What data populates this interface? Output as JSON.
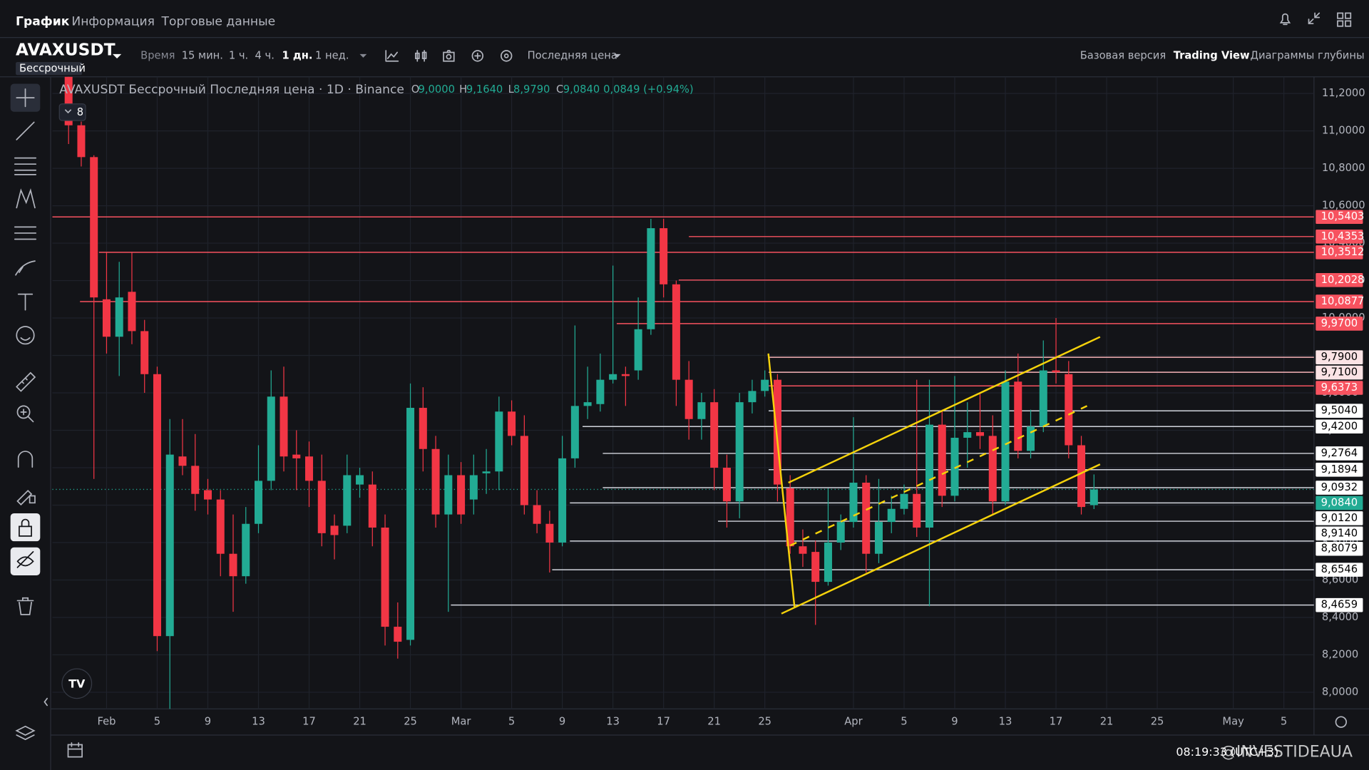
{
  "nav": {
    "tabs": [
      "График",
      "Информация",
      "Торговые данные"
    ]
  },
  "toolbar": {
    "symbol": "AVAXUSDT",
    "contract": "Бессрочный",
    "time_label": "Время",
    "intervals": [
      "15 мин.",
      "1 ч.",
      "4 ч.",
      "1 дн.",
      "1 нед."
    ],
    "price_source": "Последняя цена",
    "views": [
      "Базовая версия",
      "Trading View",
      "Диаграммы глубины"
    ]
  },
  "legend": {
    "title": "AVAXUSDT Бессрочный Последняя цена · 1D · Binance",
    "o_label": "O",
    "open": "9,0000",
    "h_label": "H",
    "high": "9,1640",
    "l_label": "L",
    "low": "8,9790",
    "c_label": "C",
    "close": "9,0840",
    "change": "0,0849 (+0.94%)",
    "indicators": "8"
  },
  "footer": {
    "time": "08:19:33 (UTC+3)",
    "watermark": "@INVESTIDEAUA"
  },
  "chart_data": {
    "type": "candlestick",
    "up_color": "#22ab94",
    "down_color": "#f23645",
    "grid": true,
    "x": [
      -3,
      -2,
      -1,
      0,
      1,
      2,
      3,
      4,
      5,
      6,
      7,
      8,
      9,
      10,
      11,
      12,
      13,
      14,
      15,
      16,
      17,
      18,
      19,
      20,
      21,
      22,
      23,
      24,
      25,
      26,
      27,
      28,
      29,
      30,
      31,
      32,
      33,
      34,
      35,
      36,
      37,
      38,
      39,
      40,
      41,
      42,
      43,
      44,
      45,
      46,
      47,
      48,
      49,
      50,
      51,
      52,
      53,
      54,
      55,
      56,
      57,
      58,
      59,
      60,
      61,
      62,
      63,
      64,
      65,
      66,
      67,
      68,
      69,
      70,
      71,
      72,
      73,
      74,
      75,
      76,
      77,
      78
    ],
    "open": [
      11.35,
      11.03,
      10.86,
      10.1,
      9.9,
      10.14,
      9.93,
      9.7,
      8.3,
      9.26,
      9.21,
      9.08,
      9.03,
      8.74,
      8.62,
      8.9,
      9.13,
      9.58,
      9.27,
      9.26,
      9.13,
      8.89,
      8.89,
      9.11,
      9.11,
      8.88,
      8.35,
      8.28,
      9.52,
      9.3,
      8.95,
      9.16,
      9.03,
      9.17,
      9.18,
      9.5,
      9.37,
      9.0,
      8.9,
      8.8,
      9.25,
      9.53,
      9.54,
      9.67,
      9.7,
      9.72,
      9.94,
      10.48,
      10.18,
      9.67,
      9.46,
      9.55,
      9.2,
      9.02,
      9.55,
      9.61,
      9.67,
      9.09,
      8.78,
      8.75,
      8.59,
      8.8,
      8.91,
      9.12,
      8.74,
      8.91,
      8.98,
      9.06,
      8.88,
      9.43,
      9.05,
      9.36,
      9.39,
      9.37,
      9.02,
      9.66,
      9.29,
      9.42,
      9.72,
      9.7,
      9.32,
      9.0
    ],
    "high": [
      11.45,
      11.05,
      10.87,
      10.35,
      10.3,
      10.35,
      9.99,
      9.74,
      9.46,
      9.46,
      9.38,
      9.14,
      9.08,
      8.95,
      8.99,
      9.32,
      9.72,
      9.74,
      9.4,
      9.34,
      9.27,
      8.95,
      9.27,
      9.2,
      9.18,
      8.95,
      8.48,
      9.65,
      9.63,
      9.37,
      9.27,
      9.23,
      9.27,
      9.3,
      9.58,
      9.56,
      9.48,
      9.08,
      8.97,
      9.37,
      9.96,
      9.74,
      9.81,
      10.28,
      9.74,
      10.11,
      10.53,
      10.53,
      10.2,
      9.77,
      9.6,
      9.62,
      9.27,
      9.6,
      9.67,
      9.72,
      9.7,
      9.16,
      8.87,
      8.81,
      9.09,
      8.95,
      9.47,
      9.16,
      9.14,
      9.05,
      9.11,
      9.67,
      9.67,
      9.51,
      9.69,
      9.55,
      9.6,
      9.48,
      9.72,
      9.81,
      9.51,
      9.88,
      10.0,
      9.77,
      9.37,
      9.164
    ],
    "low": [
      10.93,
      10.81,
      9.14,
      9.81,
      9.69,
      9.86,
      9.6,
      8.22,
      7.91,
      9.16,
      8.97,
      8.95,
      8.62,
      8.43,
      8.58,
      8.85,
      9.08,
      9.18,
      9.08,
      8.99,
      8.78,
      8.71,
      8.85,
      9.04,
      8.78,
      8.25,
      8.18,
      8.25,
      9.18,
      8.88,
      8.43,
      8.9,
      8.95,
      9.06,
      9.08,
      9.32,
      8.95,
      8.85,
      8.64,
      8.78,
      9.2,
      9.46,
      9.5,
      9.65,
      9.53,
      9.67,
      9.91,
      10.11,
      9.53,
      9.35,
      9.35,
      9.08,
      8.88,
      8.93,
      9.49,
      9.58,
      9.02,
      8.74,
      8.67,
      8.36,
      8.57,
      8.76,
      8.88,
      8.64,
      8.69,
      8.85,
      8.95,
      8.83,
      8.46,
      8.99,
      9.02,
      9.2,
      9.3,
      8.95,
      9.0,
      9.25,
      9.25,
      9.39,
      9.65,
      9.25,
      8.95,
      8.979
    ],
    "close": [
      11.03,
      10.86,
      10.11,
      9.9,
      10.11,
      9.93,
      9.7,
      8.3,
      9.27,
      9.21,
      9.06,
      9.03,
      8.74,
      8.62,
      8.9,
      9.13,
      9.58,
      9.26,
      9.25,
      9.13,
      8.85,
      8.84,
      9.16,
      9.16,
      8.88,
      8.35,
      8.27,
      9.52,
      9.3,
      8.95,
      9.16,
      8.95,
      9.16,
      9.18,
      9.5,
      9.37,
      9.0,
      8.9,
      8.8,
      9.25,
      9.53,
      9.55,
      9.67,
      9.7,
      9.69,
      9.94,
      10.48,
      10.18,
      9.67,
      9.46,
      9.55,
      9.2,
      9.02,
      9.55,
      9.61,
      9.67,
      9.11,
      8.78,
      8.74,
      8.59,
      8.8,
      8.91,
      9.12,
      8.74,
      8.91,
      8.98,
      9.06,
      8.88,
      9.43,
      9.05,
      9.36,
      9.39,
      9.37,
      9.02,
      9.66,
      9.29,
      9.42,
      9.72,
      9.71,
      9.32,
      8.99,
      9.084
    ],
    "xlim": [
      -4.28,
      95.38
    ],
    "xticks": [
      {
        "value": 0,
        "label": "Feb"
      },
      {
        "value": 4,
        "label": "5"
      },
      {
        "value": 8,
        "label": "9"
      },
      {
        "value": 12,
        "label": "13"
      },
      {
        "value": 16,
        "label": "17"
      },
      {
        "value": 20,
        "label": "21"
      },
      {
        "value": 24,
        "label": "25"
      },
      {
        "value": 28,
        "label": "Mar"
      },
      {
        "value": 32,
        "label": "5"
      },
      {
        "value": 36,
        "label": "9"
      },
      {
        "value": 40,
        "label": "13"
      },
      {
        "value": 44,
        "label": "17"
      },
      {
        "value": 48,
        "label": "21"
      },
      {
        "value": 52,
        "label": "25"
      },
      {
        "value": 59,
        "label": "Apr"
      },
      {
        "value": 63,
        "label": "5"
      },
      {
        "value": 67,
        "label": "9"
      },
      {
        "value": 71,
        "label": "13"
      },
      {
        "value": 75,
        "label": "17"
      },
      {
        "value": 79,
        "label": "21"
      },
      {
        "value": 83,
        "label": "25"
      },
      {
        "value": 89,
        "label": "May"
      },
      {
        "value": 93,
        "label": "5"
      }
    ],
    "ylim": [
      7.911,
      11.289
    ],
    "yticks": [
      {
        "value": 8.0,
        "label": "8,0000"
      },
      {
        "value": 8.2,
        "label": "8,2000"
      },
      {
        "value": 8.4,
        "label": "8,4000"
      },
      {
        "value": 8.6,
        "label": "8,6000"
      },
      {
        "value": 8.8,
        "label": "8,8000"
      },
      {
        "value": 9.0,
        "label": "9,0000"
      },
      {
        "value": 9.2,
        "label": "9,2000"
      },
      {
        "value": 9.4,
        "label": "9,4000"
      },
      {
        "value": 9.6,
        "label": "9,6000"
      },
      {
        "value": 9.8,
        "label": "9,8000"
      },
      {
        "value": 10.0,
        "label": "10,0000"
      },
      {
        "value": 10.2,
        "label": "10,2000"
      },
      {
        "value": 10.4,
        "label": "10,4000"
      },
      {
        "value": 10.6,
        "label": "10,6000"
      },
      {
        "value": 10.8,
        "label": "10,8000"
      },
      {
        "value": 11.0,
        "label": "11,0000"
      },
      {
        "value": 11.2,
        "label": "11,2000"
      }
    ],
    "levels": [
      {
        "value": 10.5403,
        "label": "10,5403",
        "start": -4.28,
        "line_color": "#f7525f",
        "tag_color": "#f7525f",
        "text_color": "#ffffff"
      },
      {
        "value": 10.4353,
        "label": "10,4353",
        "start": 46,
        "line_color": "#f7525f",
        "tag_color": "#f7525f",
        "text_color": "#ffffff"
      },
      {
        "value": 10.3512,
        "label": "10,3512",
        "start": -0.6,
        "line_color": "#f7525f",
        "tag_color": "#f7525f",
        "text_color": "#ffffff"
      },
      {
        "value": 10.2028,
        "label": "10,2028",
        "start": 45.2,
        "line_color": "#f7525f",
        "tag_color": "#f7525f",
        "text_color": "#ffffff"
      },
      {
        "value": 10.0877,
        "label": "10,0877",
        "start": -2.1,
        "line_color": "#f7525f",
        "tag_color": "#f7525f",
        "text_color": "#ffffff"
      },
      {
        "value": 9.97,
        "label": "9,9700",
        "start": 40.3,
        "line_color": "#f7525f",
        "tag_color": "#f7525f",
        "text_color": "#ffffff"
      },
      {
        "value": 9.79,
        "label": "9,7900",
        "start": 52.3,
        "line_color": "#f7b3b9",
        "tag_color": "#fbe3e5",
        "text_color": "#000000"
      },
      {
        "value": 9.71,
        "label": "9,7100",
        "start": 52.3,
        "line_color": "#f7b3b9",
        "tag_color": "#fbe3e5",
        "text_color": "#000000"
      },
      {
        "value": 9.6373,
        "label": "9,6373",
        "start": 52.3,
        "line_color": "#f7525f",
        "tag_color": "#f7525f",
        "text_color": "#ffffff"
      },
      {
        "value": 9.504,
        "label": "9,5040",
        "start": 52.3,
        "line_color": "#d1d4dc",
        "tag_color": "#ffffff",
        "text_color": "#000000"
      },
      {
        "value": 9.42,
        "label": "9,4200",
        "start": 37.6,
        "line_color": "#d1d4dc",
        "tag_color": "#ffffff",
        "text_color": "#000000"
      },
      {
        "value": 9.2764,
        "label": "9,2764",
        "start": 39.2,
        "line_color": "#d1d4dc",
        "tag_color": "#ffffff",
        "text_color": "#000000"
      },
      {
        "value": 9.1894,
        "label": "9,1894",
        "start": 52.3,
        "line_color": "#d1d4dc",
        "tag_color": "#ffffff",
        "text_color": "#000000"
      },
      {
        "value": 9.0932,
        "label": "9,0932",
        "start": 39.2,
        "line_color": "#d1d4dc",
        "tag_color": "#ffffff",
        "text_color": "#000000"
      },
      {
        "value": 9.084,
        "label": "9,0840",
        "start": -4.28,
        "line_color": "#22ab94",
        "tag_color": "#22ab94",
        "text_color": "#ffffff",
        "style": "dotted"
      },
      {
        "value": 9.012,
        "label": "9,0120",
        "start": 36.6,
        "line_color": "#d1d4dc",
        "tag_color": "#ffffff",
        "text_color": "#000000"
      },
      {
        "value": 8.914,
        "label": "8,9140",
        "start": 48.3,
        "line_color": "#d1d4dc",
        "tag_color": "#ffffff",
        "text_color": "#000000"
      },
      {
        "value": 8.8079,
        "label": "8,8079",
        "start": 36.6,
        "line_color": "#d1d4dc",
        "tag_color": "#ffffff",
        "text_color": "#000000"
      },
      {
        "value": 8.6546,
        "label": "8,6546",
        "start": 35.2,
        "line_color": "#d1d4dc",
        "tag_color": "#ffffff",
        "text_color": "#000000"
      },
      {
        "value": 8.4659,
        "label": "8,4659",
        "start": 27.2,
        "line_color": "#d1d4dc",
        "tag_color": "#ffffff",
        "text_color": "#000000"
      }
    ],
    "trendlines": [
      {
        "color": "#f5d20b",
        "dashed": false,
        "points": [
          [
            53.86,
            9.12
          ],
          [
            78.48,
            9.899
          ]
        ]
      },
      {
        "color": "#f5d20b",
        "dashed": false,
        "points": [
          [
            53.31,
            8.42
          ],
          [
            78.48,
            9.218
          ]
        ]
      },
      {
        "color": "#f5d20b",
        "dashed": true,
        "points": [
          [
            54.0,
            8.784
          ],
          [
            77.45,
            9.53
          ]
        ]
      },
      {
        "color": "#f5d20b",
        "dashed": false,
        "points": [
          [
            52.28,
            9.81
          ],
          [
            54.34,
            8.457
          ]
        ]
      }
    ]
  }
}
